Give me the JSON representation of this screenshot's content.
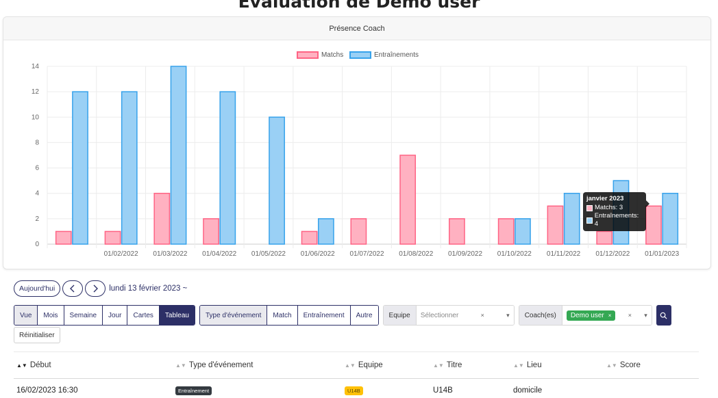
{
  "page": {
    "title": "Évaluation de Demo user"
  },
  "chart_data": {
    "type": "bar",
    "title": "Présence Coach",
    "categories": [
      "",
      "01/02/2022",
      "01/03/2022",
      "01/04/2022",
      "01/05/2022",
      "01/06/2022",
      "01/07/2022",
      "01/08/2022",
      "01/09/2022",
      "01/10/2022",
      "01/11/2022",
      "01/12/2022",
      "01/01/2023"
    ],
    "series": [
      {
        "name": "Matchs",
        "values": [
          1,
          1,
          4,
          2,
          0,
          1,
          2,
          7,
          2,
          2,
          3,
          1,
          3
        ],
        "color": "#ff6384",
        "fill": "#ffb1c1"
      },
      {
        "name": "Entraînements",
        "values": [
          12,
          12,
          14,
          12,
          10,
          2,
          0,
          0,
          0,
          2,
          4,
          5,
          4
        ],
        "color": "#36a2eb",
        "fill": "#9ad0f5"
      }
    ],
    "ylim": [
      0,
      14
    ],
    "yticks": [
      0,
      2,
      4,
      6,
      8,
      10,
      12,
      14
    ],
    "grid": true,
    "legend": "top-center",
    "tooltip": {
      "title": "janvier 2023",
      "lines": [
        "Matchs: 3",
        "Entraînements: 4"
      ]
    }
  },
  "toolbar": {
    "today_label": "Aujourd'hui",
    "prev_icon": "chevron-left-icon",
    "next_icon": "chevron-right-icon",
    "current_date": "lundi 13 février 2023 ~"
  },
  "view": {
    "label": "Vue",
    "options": [
      "Mois",
      "Semaine",
      "Jour",
      "Cartes",
      "Tableau"
    ],
    "active": "Tableau"
  },
  "event_type": {
    "label": "Type d'événement",
    "options": [
      "Match",
      "Entraînement",
      "Autre"
    ]
  },
  "team_filter": {
    "label": "Equipe",
    "placeholder": "Sélectionner",
    "clear": "×"
  },
  "coach_filter": {
    "label": "Coach(es)",
    "selected": "Demo user",
    "clear": "×"
  },
  "search_icon": "search-icon",
  "reset_label": "Réinitialiser",
  "table": {
    "columns": [
      "Début",
      "Type d'événement",
      "Equipe",
      "Titre",
      "Lieu",
      "Score"
    ],
    "rows": [
      {
        "debut": "16/02/2023 16:30",
        "type": "Entraînement",
        "equipe": "U14B",
        "titre": "U14B",
        "lieu": "domicile",
        "score": ""
      }
    ]
  }
}
